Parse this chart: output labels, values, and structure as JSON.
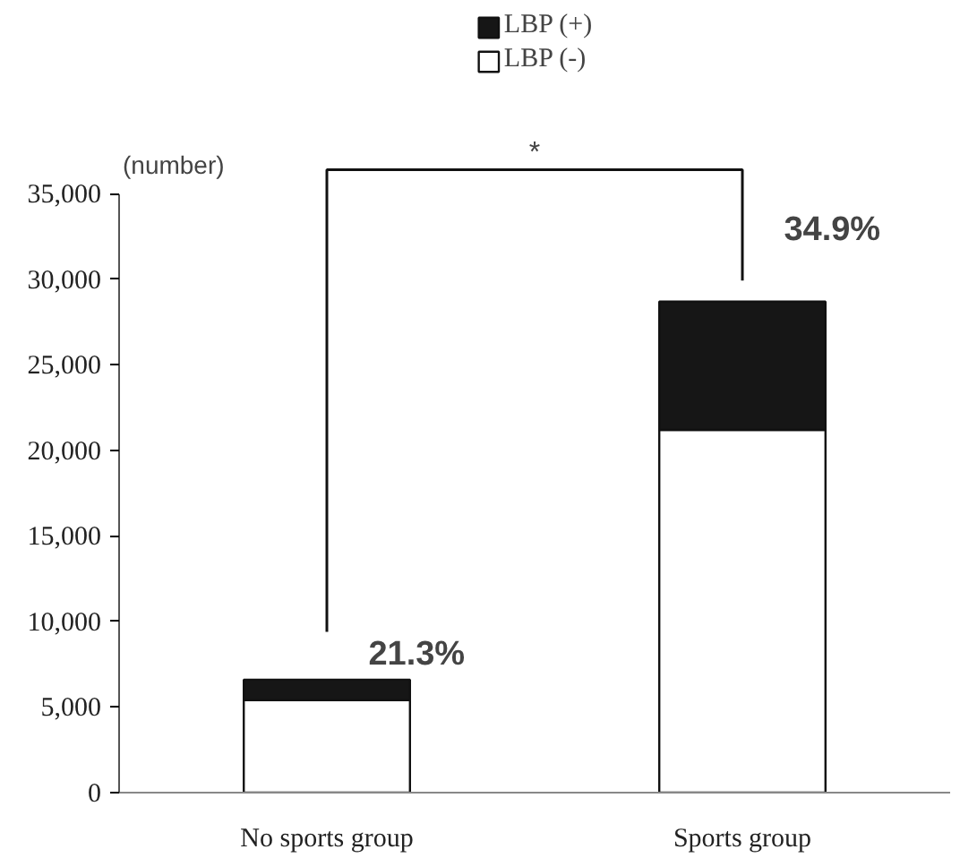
{
  "chart_data": {
    "type": "bar",
    "stacked": true,
    "ylabel": "(number)",
    "categories": [
      "No sports group",
      "Sports group"
    ],
    "series": [
      {
        "name": "LBP (-)",
        "color": "#ffffff",
        "values": [
          5400,
          21200
        ]
      },
      {
        "name": "LBP (+)",
        "color": "#161616",
        "values": [
          1200,
          7500
        ]
      }
    ],
    "ylim": [
      0,
      35000
    ],
    "yticks": [
      {
        "value": 0,
        "label": "0"
      },
      {
        "value": 5000,
        "label": "5,000"
      },
      {
        "value": 10000,
        "label": "10,000"
      },
      {
        "value": 15000,
        "label": "15,000"
      },
      {
        "value": 20000,
        "label": "20,000"
      },
      {
        "value": 25000,
        "label": "25,000"
      },
      {
        "value": 30000,
        "label": "30,000"
      },
      {
        "value": 35000,
        "label": "35,000"
      }
    ],
    "grid": false,
    "legend": "top",
    "annotations": [
      "21.3%",
      "34.9%",
      "*"
    ]
  }
}
